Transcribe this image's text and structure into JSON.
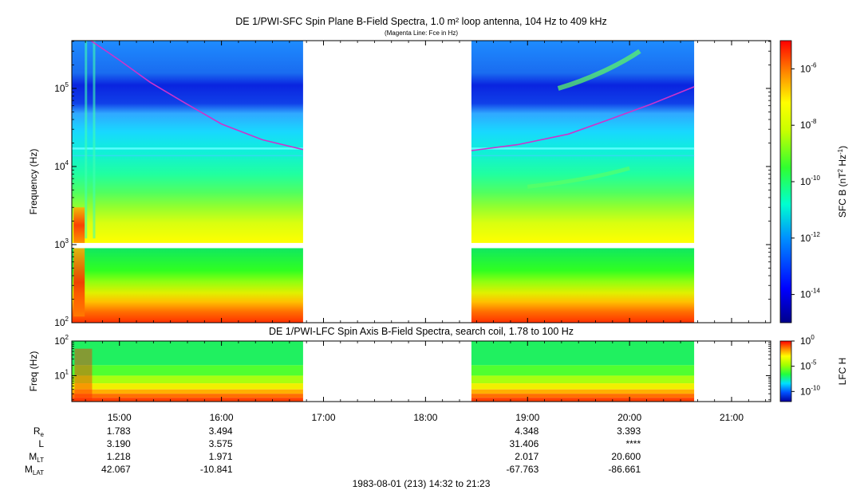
{
  "chart_data": [
    {
      "type": "heatmap",
      "title": "DE 1/PWI-SFC  Spin Plane B-Field Spectra, 1.0 m² loop antenna, 104 Hz to 409 kHz",
      "subtitle": "(Magenta Line: Fce in Hz)",
      "ylabel": "Frequency (Hz)",
      "yscale": "log",
      "ylim": [
        100,
        409000
      ],
      "y_ticks": [
        {
          "value": 100,
          "label": "10",
          "exp": "2"
        },
        {
          "value": 1000,
          "label": "10",
          "exp": "3"
        },
        {
          "value": 10000,
          "label": "10",
          "exp": "4"
        },
        {
          "value": 100000,
          "label": "10",
          "exp": "5"
        }
      ],
      "x_range_hours": [
        14.533,
        21.383
      ],
      "data_intervals_hours": [
        [
          14.533,
          16.8
        ],
        [
          18.45,
          20.633
        ]
      ],
      "colorbar": {
        "label_main": "SFC B (nT",
        "label_sup1": "2",
        "label_mid": " Hz",
        "label_sup2": "-1",
        "label_end": ")",
        "scale": "log",
        "range": [
          1e-15,
          1e-05
        ],
        "ticks": [
          {
            "value": 1e-06,
            "label": "10",
            "exp": "-6"
          },
          {
            "value": 1e-08,
            "label": "10",
            "exp": "-8"
          },
          {
            "value": 1e-10,
            "label": "10",
            "exp": "-10"
          },
          {
            "value": 1e-12,
            "label": "10",
            "exp": "-12"
          },
          {
            "value": 1e-14,
            "label": "10",
            "exp": "-14"
          }
        ]
      },
      "fce_line": {
        "color": "#cc33cc",
        "segments": [
          {
            "points": [
              [
                14.72,
                409000
              ],
              [
                15.0,
                230000
              ],
              [
                15.3,
                120000
              ],
              [
                15.6,
                70000
              ],
              [
                16.0,
                35000
              ],
              [
                16.4,
                22000
              ],
              [
                16.8,
                16500
              ]
            ]
          },
          {
            "points": [
              [
                18.45,
                16000
              ],
              [
                18.9,
                19000
              ],
              [
                19.4,
                26000
              ],
              [
                19.8,
                40000
              ],
              [
                20.2,
                62000
              ],
              [
                20.633,
                105000
              ]
            ]
          }
        ]
      }
    },
    {
      "type": "heatmap",
      "title": "DE 1/PWI-LFC  Spin Axis B-Field Spectra, search coil, 1.78 to 100 Hz",
      "ylabel": "Freq (Hz)",
      "yscale": "log",
      "ylim": [
        1.78,
        100
      ],
      "y_ticks": [
        {
          "value": 10,
          "label": "10",
          "exp": "1"
        },
        {
          "value": 100,
          "label": "10",
          "exp": "2"
        }
      ],
      "x_range_hours": [
        14.533,
        21.383
      ],
      "data_intervals_hours": [
        [
          14.533,
          16.8
        ],
        [
          18.45,
          20.633
        ]
      ],
      "colorbar": {
        "label": "LFC H",
        "scale": "log",
        "range": [
          1e-12,
          1
        ],
        "ticks": [
          {
            "value": 1,
            "label": "10",
            "exp": "0"
          },
          {
            "value": 1e-05,
            "label": "10",
            "exp": "-5"
          },
          {
            "value": 1e-10,
            "label": "10",
            "exp": "-10"
          }
        ]
      }
    }
  ],
  "time_axis": {
    "ticks": [
      {
        "hour": 15,
        "label": "15:00"
      },
      {
        "hour": 16,
        "label": "16:00"
      },
      {
        "hour": 17,
        "label": "17:00"
      },
      {
        "hour": 18,
        "label": "18:00"
      },
      {
        "hour": 19,
        "label": "19:00"
      },
      {
        "hour": 20,
        "label": "20:00"
      },
      {
        "hour": 21,
        "label": "21:00"
      }
    ]
  },
  "ephemeris": {
    "rows": [
      {
        "label": "R",
        "sub": "e",
        "values": [
          "1.783",
          "3.494",
          "",
          "",
          "4.348",
          "3.393",
          ""
        ]
      },
      {
        "label": "L",
        "sub": "",
        "values": [
          "3.190",
          "3.575",
          "",
          "",
          "31.406",
          "****",
          ""
        ]
      },
      {
        "label": "M",
        "sub": "LT",
        "values": [
          "1.218",
          "1.971",
          "",
          "",
          "2.017",
          "20.600",
          ""
        ]
      },
      {
        "label": "M",
        "sub": "LAT",
        "values": [
          "42.067",
          "-10.841",
          "",
          "",
          "-67.763",
          "-86.661",
          ""
        ]
      }
    ]
  },
  "footer": "1983-08-01 (213) 14:32 to 21:23"
}
